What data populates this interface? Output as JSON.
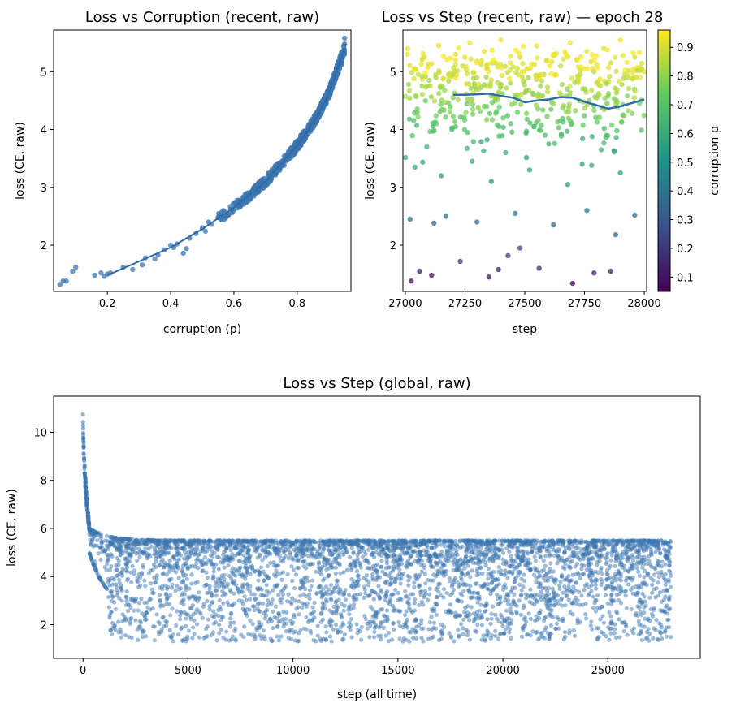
{
  "chart_data": [
    {
      "id": "p1",
      "type": "scatter",
      "title": "Loss vs Corruption (recent, raw)",
      "xlabel": "corruption (p)",
      "ylabel": "loss (CE, raw)",
      "xlim": [
        0.03,
        0.97
      ],
      "ylim": [
        1.2,
        5.72
      ],
      "xticks": [
        0.2,
        0.4,
        0.6,
        0.8
      ],
      "yticks": [
        2,
        3,
        4,
        5
      ],
      "grid": false,
      "points": [
        [
          0.05,
          1.32
        ],
        [
          0.06,
          1.38
        ],
        [
          0.07,
          1.38
        ],
        [
          0.09,
          1.55
        ],
        [
          0.1,
          1.62
        ],
        [
          0.16,
          1.48
        ],
        [
          0.18,
          1.52
        ],
        [
          0.19,
          1.46
        ],
        [
          0.2,
          1.5
        ],
        [
          0.21,
          1.52
        ],
        [
          0.25,
          1.62
        ],
        [
          0.28,
          1.58
        ],
        [
          0.31,
          1.66
        ],
        [
          0.32,
          1.78
        ],
        [
          0.35,
          1.76
        ],
        [
          0.36,
          1.83
        ],
        [
          0.38,
          1.92
        ],
        [
          0.4,
          2.0
        ],
        [
          0.41,
          1.96
        ],
        [
          0.42,
          2.02
        ],
        [
          0.44,
          1.86
        ],
        [
          0.45,
          1.94
        ],
        [
          0.46,
          2.12
        ],
        [
          0.48,
          2.2
        ],
        [
          0.5,
          2.3
        ],
        [
          0.51,
          2.24
        ],
        [
          0.52,
          2.4
        ],
        [
          0.53,
          2.36
        ],
        [
          0.55,
          2.48
        ],
        [
          0.56,
          2.45
        ],
        [
          0.57,
          2.58
        ],
        [
          0.58,
          2.52
        ],
        [
          0.6,
          2.63
        ],
        [
          0.61,
          2.7
        ],
        [
          0.62,
          2.66
        ],
        [
          0.63,
          2.8
        ],
        [
          0.64,
          2.74
        ],
        [
          0.65,
          2.86
        ],
        [
          0.66,
          2.95
        ],
        [
          0.67,
          2.9
        ],
        [
          0.68,
          3.05
        ],
        [
          0.69,
          3.12
        ],
        [
          0.7,
          3.08
        ],
        [
          0.71,
          3.2
        ],
        [
          0.72,
          3.28
        ],
        [
          0.73,
          3.22
        ],
        [
          0.74,
          3.36
        ],
        [
          0.75,
          3.42
        ],
        [
          0.76,
          3.48
        ],
        [
          0.77,
          3.55
        ],
        [
          0.78,
          3.6
        ],
        [
          0.79,
          3.7
        ],
        [
          0.8,
          3.74
        ],
        [
          0.81,
          3.82
        ],
        [
          0.82,
          3.9
        ],
        [
          0.83,
          3.98
        ],
        [
          0.84,
          4.08
        ],
        [
          0.85,
          4.16
        ],
        [
          0.86,
          4.22
        ],
        [
          0.87,
          4.32
        ],
        [
          0.88,
          4.4
        ],
        [
          0.89,
          4.5
        ],
        [
          0.9,
          4.62
        ],
        [
          0.91,
          4.74
        ],
        [
          0.92,
          4.86
        ],
        [
          0.93,
          4.98
        ],
        [
          0.94,
          5.12
        ],
        [
          0.945,
          5.3
        ],
        [
          0.95,
          5.48
        ],
        [
          0.95,
          5.58
        ]
      ],
      "trend": [
        [
          0.2,
          1.48
        ],
        [
          0.3,
          1.72
        ],
        [
          0.4,
          1.96
        ],
        [
          0.5,
          2.28
        ],
        [
          0.6,
          2.65
        ],
        [
          0.7,
          3.1
        ],
        [
          0.8,
          3.72
        ],
        [
          0.86,
          4.2
        ],
        [
          0.9,
          4.62
        ],
        [
          0.95,
          5.4
        ]
      ],
      "colors": {
        "points": "#3b75af",
        "line": "#2f6aa8"
      }
    },
    {
      "id": "p2",
      "type": "scatter",
      "title": "Loss vs Step (recent, raw) — epoch 28",
      "xlabel": "step",
      "ylabel": "loss (CE, raw)",
      "xlim": [
        26990,
        28010
      ],
      "ylim": [
        1.2,
        5.72
      ],
      "xticks": [
        27000,
        27250,
        27500,
        27750,
        28000
      ],
      "yticks": [
        2,
        3,
        4,
        5
      ],
      "grid": false,
      "points": [
        [
          27025,
          1.38,
          0.08
        ],
        [
          27060,
          1.55,
          0.12
        ],
        [
          27110,
          1.48,
          0.1
        ],
        [
          27230,
          1.72,
          0.18
        ],
        [
          27350,
          1.45,
          0.12
        ],
        [
          27390,
          1.58,
          0.14
        ],
        [
          27430,
          1.82,
          0.22
        ],
        [
          27480,
          1.95,
          0.26
        ],
        [
          27560,
          1.6,
          0.16
        ],
        [
          27700,
          1.34,
          0.08
        ],
        [
          27790,
          1.52,
          0.12
        ],
        [
          27860,
          1.55,
          0.13
        ],
        [
          27020,
          2.45,
          0.4
        ],
        [
          27120,
          2.38,
          0.38
        ],
        [
          27170,
          2.5,
          0.4
        ],
        [
          27300,
          2.4,
          0.38
        ],
        [
          27460,
          2.55,
          0.42
        ],
        [
          27620,
          2.35,
          0.38
        ],
        [
          27760,
          2.6,
          0.43
        ],
        [
          27880,
          2.18,
          0.36
        ],
        [
          27960,
          2.52,
          0.42
        ],
        [
          27040,
          3.35,
          0.58
        ],
        [
          27090,
          3.7,
          0.63
        ],
        [
          27150,
          3.2,
          0.55
        ],
        [
          27280,
          3.45,
          0.6
        ],
        [
          27360,
          3.1,
          0.54
        ],
        [
          27420,
          3.6,
          0.62
        ],
        [
          27520,
          3.3,
          0.57
        ],
        [
          27600,
          3.75,
          0.64
        ],
        [
          27680,
          3.05,
          0.53
        ],
        [
          27740,
          3.4,
          0.59
        ],
        [
          27820,
          3.65,
          0.63
        ],
        [
          27900,
          3.25,
          0.56
        ],
        [
          27050,
          4.3,
          0.75
        ],
        [
          27130,
          4.1,
          0.72
        ],
        [
          27200,
          4.55,
          0.78
        ],
        [
          27260,
          3.95,
          0.7
        ],
        [
          27330,
          4.4,
          0.76
        ],
        [
          27410,
          4.2,
          0.73
        ],
        [
          27470,
          4.6,
          0.79
        ],
        [
          27540,
          4.05,
          0.71
        ],
        [
          27610,
          4.35,
          0.75
        ],
        [
          27690,
          4.15,
          0.72
        ],
        [
          27770,
          4.5,
          0.78
        ],
        [
          27840,
          3.9,
          0.69
        ],
        [
          27910,
          4.25,
          0.74
        ],
        [
          27980,
          4.45,
          0.77
        ],
        [
          27010,
          5.4,
          0.92
        ],
        [
          27040,
          5.05,
          0.88
        ],
        [
          27080,
          5.25,
          0.9
        ],
        [
          27100,
          4.85,
          0.85
        ],
        [
          27140,
          5.45,
          0.93
        ],
        [
          27180,
          4.95,
          0.86
        ],
        [
          27210,
          5.3,
          0.91
        ],
        [
          27240,
          5.1,
          0.88
        ],
        [
          27270,
          5.5,
          0.94
        ],
        [
          27300,
          4.9,
          0.86
        ],
        [
          27330,
          5.35,
          0.92
        ],
        [
          27370,
          5.15,
          0.89
        ],
        [
          27400,
          5.55,
          0.94
        ],
        [
          27440,
          4.8,
          0.84
        ],
        [
          27480,
          5.25,
          0.9
        ],
        [
          27510,
          5.05,
          0.87
        ],
        [
          27550,
          5.45,
          0.93
        ],
        [
          27580,
          4.95,
          0.86
        ],
        [
          27620,
          5.3,
          0.91
        ],
        [
          27650,
          5.1,
          0.88
        ],
        [
          27690,
          5.5,
          0.94
        ],
        [
          27720,
          4.85,
          0.85
        ],
        [
          27760,
          5.35,
          0.92
        ],
        [
          27790,
          5.0,
          0.87
        ],
        [
          27830,
          5.4,
          0.92
        ],
        [
          27860,
          5.15,
          0.89
        ],
        [
          27900,
          5.55,
          0.94
        ],
        [
          27930,
          4.9,
          0.86
        ],
        [
          27960,
          5.25,
          0.9
        ],
        [
          27990,
          5.05,
          0.88
        ]
      ],
      "trend": [
        [
          27200,
          4.6
        ],
        [
          27250,
          4.6
        ],
        [
          27300,
          4.61
        ],
        [
          27350,
          4.62
        ],
        [
          27400,
          4.58
        ],
        [
          27450,
          4.55
        ],
        [
          27500,
          4.47
        ],
        [
          27550,
          4.5
        ],
        [
          27600,
          4.52
        ],
        [
          27650,
          4.56
        ],
        [
          27700,
          4.55
        ],
        [
          27750,
          4.48
        ],
        [
          27800,
          4.42
        ],
        [
          27850,
          4.36
        ],
        [
          27900,
          4.4
        ],
        [
          27950,
          4.46
        ],
        [
          28000,
          4.52
        ]
      ],
      "colorbar": {
        "label": "corruption p",
        "range": [
          0.05,
          0.96
        ],
        "ticks": [
          0.1,
          0.2,
          0.3,
          0.4,
          0.5,
          0.6,
          0.7,
          0.8,
          0.9
        ],
        "colormap": "viridis",
        "stops": [
          "#440154",
          "#3b528b",
          "#21918c",
          "#5ec962",
          "#fde725"
        ]
      },
      "colors": {
        "line": "#2f6aa8"
      }
    },
    {
      "id": "p3",
      "type": "scatter",
      "title": "Loss vs Step (global, raw)",
      "xlabel": "step (all time)",
      "ylabel": "loss (CE, raw)",
      "xlim": [
        -1400,
        29400
      ],
      "ylim": [
        0.6,
        11.5
      ],
      "xticks": [
        0,
        5000,
        10000,
        15000,
        20000,
        25000
      ],
      "yticks": [
        2,
        4,
        6,
        8,
        10
      ],
      "grid": false,
      "steps_max": 28000,
      "band": {
        "upper": 5.5,
        "lower_floor": 1.3,
        "peak": 11.0
      },
      "colors": {
        "points": "#3b75af"
      }
    }
  ]
}
